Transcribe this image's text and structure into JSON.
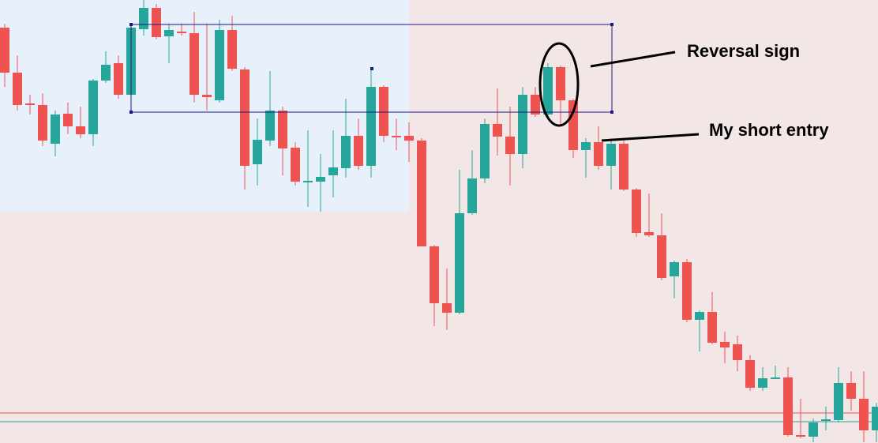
{
  "chart_data": {
    "type": "candlestick",
    "ylim": [
      0,
      561
    ],
    "up_color": "#26a69a",
    "down_color": "#ef5350",
    "open": [
      526,
      469,
      430,
      428,
      379,
      417,
      401,
      391,
      459,
      481,
      441,
      524,
      551,
      515,
      521,
      519,
      441,
      434,
      523,
      473,
      353,
      383,
      421,
      374,
      330,
      331,
      339,
      348,
      389,
      351,
      451,
      389,
      389,
      383,
      249,
      177,
      165,
      291,
      335,
      404,
      388,
      366,
      441,
      416,
      476,
      434,
      371,
      381,
      351,
      379,
      321,
      267,
      263,
      211,
      229,
      156,
      166,
      128,
      125,
      105,
      70,
      81,
      83,
      10,
      8,
      28,
      29,
      76,
      56,
      16
    ],
    "high": [
      531,
      491,
      441,
      443,
      421,
      431,
      426,
      461,
      496,
      491,
      531,
      561,
      556,
      531,
      531,
      546,
      531,
      536,
      541,
      476,
      411,
      471,
      426,
      381,
      396,
      366,
      396,
      436,
      411,
      473,
      453,
      411,
      406,
      386,
      251,
      221,
      346,
      371,
      411,
      449,
      426,
      451,
      451,
      481,
      478,
      436,
      386,
      401,
      386,
      383,
      323,
      316,
      291,
      231,
      233,
      168,
      191,
      141,
      136,
      111,
      96,
      98,
      96,
      56,
      31,
      46,
      96,
      91,
      91,
      51
    ],
    "low": [
      451,
      421,
      416,
      376,
      363,
      391,
      386,
      376,
      456,
      436,
      436,
      516,
      511,
      481,
      516,
      431,
      421,
      431,
      471,
      321,
      326,
      376,
      339,
      326,
      299,
      293,
      311,
      336,
      346,
      336,
      381,
      371,
      356,
      249,
      148,
      143,
      163,
      289,
      329,
      364,
      326,
      348,
      413,
      411,
      401,
      361,
      336,
      346,
      321,
      319,
      261,
      261,
      206,
      183,
      153,
      116,
      125,
      101,
      91,
      66,
      66,
      81,
      8,
      6,
      1,
      16,
      26,
      41,
      1,
      1
    ],
    "close": [
      469,
      428,
      428,
      383,
      416,
      401,
      391,
      459,
      479,
      441,
      526,
      551,
      514,
      523,
      519,
      441,
      438,
      523,
      474,
      351,
      384,
      421,
      373,
      331,
      332,
      337,
      349,
      389,
      351,
      451,
      389,
      387,
      383,
      249,
      177,
      165,
      291,
      335,
      404,
      388,
      366,
      441,
      416,
      476,
      434,
      371,
      381,
      351,
      379,
      321,
      266,
      263,
      209,
      229,
      156,
      166,
      127,
      121,
      105,
      70,
      82,
      83,
      10,
      8,
      26,
      30,
      76,
      56,
      16,
      46
    ],
    "levels": [
      {
        "value": 38,
        "color": "#ef5350"
      },
      {
        "value": 27,
        "color": "#26a69a"
      }
    ],
    "annotations": [
      "Reversal sign",
      "My short entry"
    ]
  }
}
